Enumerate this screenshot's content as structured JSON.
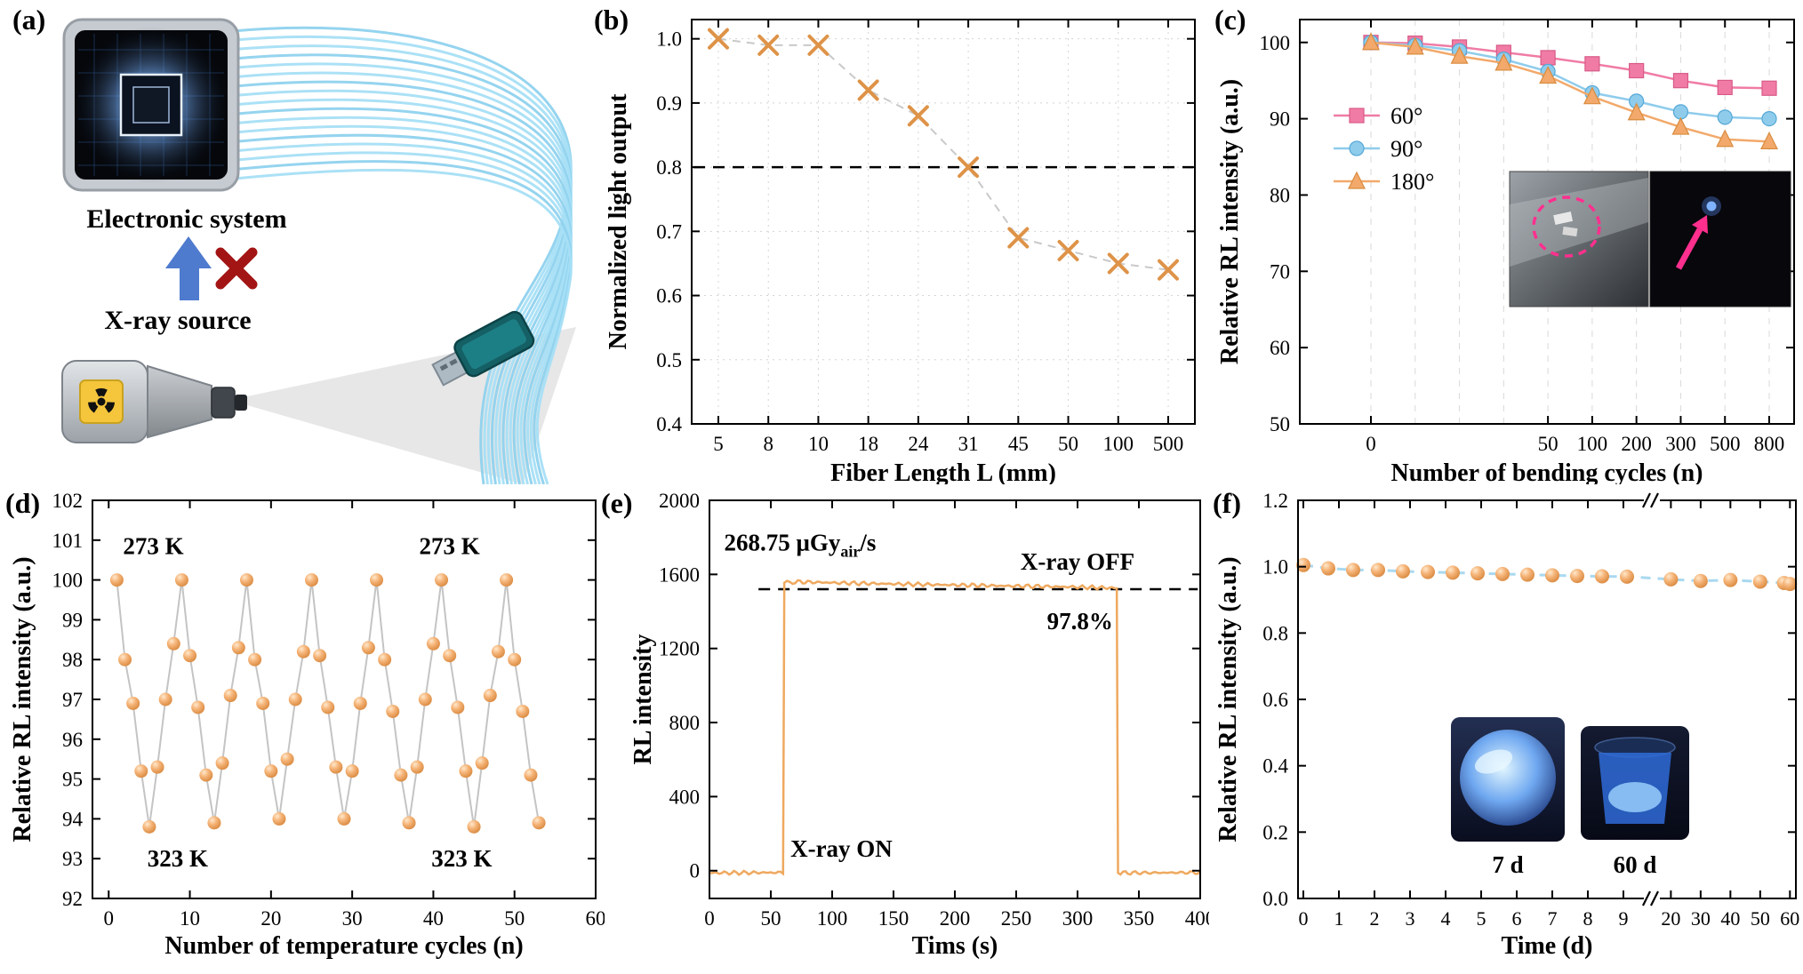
{
  "panels": {
    "a": {
      "label": "(a)",
      "electronic_system": "Electronic system",
      "xray_source": "X-ray source"
    },
    "b": {
      "label": "(b)"
    },
    "c": {
      "label": "(c)"
    },
    "d": {
      "label": "(d)"
    },
    "e": {
      "label": "(e)"
    },
    "f": {
      "label": "(f)"
    }
  },
  "chart_data": [
    {
      "id": "b",
      "type": "scatter",
      "xlabel": "Fiber Length L (mm)",
      "ylabel": "Normalized light output",
      "categories": [
        "5",
        "8",
        "10",
        "18",
        "24",
        "31",
        "45",
        "50",
        "100",
        "500"
      ],
      "values": [
        1.0,
        0.99,
        0.99,
        0.92,
        0.88,
        0.8,
        0.69,
        0.67,
        0.65,
        0.64
      ],
      "ylim": [
        0.4,
        1.03
      ],
      "yticks": [
        0.4,
        0.5,
        0.6,
        0.7,
        0.8,
        0.9,
        1.0
      ],
      "ref_line_y": 0.8,
      "grid": true,
      "marker": "x",
      "marker_color": "#DE9348",
      "line_color": "#c9c9c9"
    },
    {
      "id": "c",
      "type": "line",
      "xlabel": "Number of bending cycles (n)",
      "ylabel": "Relative RL intensity (a.u.)",
      "x_ticks": [
        [
          0,
          "0"
        ],
        [
          4,
          "50"
        ],
        [
          5,
          "100"
        ],
        [
          6,
          "200"
        ],
        [
          7,
          "300"
        ],
        [
          8,
          "500"
        ],
        [
          9,
          "800"
        ]
      ],
      "n_points": 10,
      "ylim": [
        50,
        103
      ],
      "yticks": [
        50,
        60,
        70,
        80,
        90,
        100
      ],
      "series": [
        {
          "name": "60°",
          "marker": "square",
          "color": "#F07CA5",
          "edge": "#D85A88",
          "values": [
            100,
            99.9,
            99.4,
            98.7,
            98.0,
            97.2,
            96.3,
            95.0,
            94.1,
            94.0
          ]
        },
        {
          "name": "90°",
          "marker": "circle",
          "color": "#8FCCEC",
          "edge": "#55A8D6",
          "values": [
            100,
            99.6,
            98.9,
            97.8,
            96.2,
            93.4,
            92.3,
            90.9,
            90.2,
            90.0
          ]
        },
        {
          "name": "180°",
          "marker": "triangle",
          "color": "#F2A96B",
          "edge": "#D98C3F",
          "values": [
            100,
            99.4,
            98.2,
            97.3,
            95.6,
            92.9,
            90.8,
            88.9,
            87.3,
            87.0
          ]
        }
      ]
    },
    {
      "id": "d",
      "type": "line",
      "xlabel": "Number of temperature cycles (n)",
      "ylabel": "Relative RL intensity (a.u.)",
      "xlim": [
        -2,
        60
      ],
      "xticks": [
        0,
        10,
        20,
        30,
        40,
        50,
        60
      ],
      "ylim": [
        92,
        102
      ],
      "yticks": [
        92,
        93,
        94,
        95,
        96,
        97,
        98,
        99,
        100,
        101,
        102
      ],
      "high_temp": "273 K",
      "low_temp": "323 K",
      "annotations": [
        {
          "text": "273 K",
          "x": 5.5,
          "y": 100.85
        },
        {
          "text": "273 K",
          "x": 42.0,
          "y": 100.85
        },
        {
          "text": "323 K",
          "x": 8.5,
          "y": 93.0
        },
        {
          "text": "323 K",
          "x": 43.5,
          "y": 93.0
        }
      ],
      "line_color": "#c4c4c4",
      "points": [
        [
          1,
          100
        ],
        [
          2,
          98
        ],
        [
          3,
          96.9
        ],
        [
          4,
          95.2
        ],
        [
          5,
          93.8
        ],
        [
          6,
          95.3
        ],
        [
          7,
          97
        ],
        [
          8,
          98.4
        ],
        [
          9,
          100
        ],
        [
          10,
          98.1
        ],
        [
          11,
          96.8
        ],
        [
          12,
          95.1
        ],
        [
          13,
          93.9
        ],
        [
          14,
          95.4
        ],
        [
          15,
          97.1
        ],
        [
          16,
          98.3
        ],
        [
          17,
          100
        ],
        [
          18,
          98
        ],
        [
          19,
          96.9
        ],
        [
          20,
          95.2
        ],
        [
          21,
          94
        ],
        [
          22,
          95.5
        ],
        [
          23,
          97
        ],
        [
          24,
          98.2
        ],
        [
          25,
          100
        ],
        [
          26,
          98.1
        ],
        [
          27,
          96.8
        ],
        [
          28,
          95.3
        ],
        [
          29,
          94
        ],
        [
          30,
          95.2
        ],
        [
          31,
          96.9
        ],
        [
          32,
          98.3
        ],
        [
          33,
          100
        ],
        [
          34,
          98
        ],
        [
          35,
          96.7
        ],
        [
          36,
          95.1
        ],
        [
          37,
          93.9
        ],
        [
          38,
          95.3
        ],
        [
          39,
          97
        ],
        [
          40,
          98.4
        ],
        [
          41,
          100
        ],
        [
          42,
          98.1
        ],
        [
          43,
          96.8
        ],
        [
          44,
          95.2
        ],
        [
          45,
          93.8
        ],
        [
          46,
          95.4
        ],
        [
          47,
          97.1
        ],
        [
          48,
          98.2
        ],
        [
          49,
          100
        ],
        [
          50,
          98
        ],
        [
          51,
          96.7
        ],
        [
          52,
          95.1
        ],
        [
          53,
          93.9
        ]
      ]
    },
    {
      "id": "e",
      "type": "line",
      "xlabel": "Tims (s)",
      "ylabel": "RL intensity",
      "xlim": [
        0,
        400
      ],
      "xticks": [
        0,
        50,
        100,
        150,
        200,
        250,
        300,
        350,
        400
      ],
      "ylim": [
        -150,
        2000
      ],
      "yticks": [
        0,
        400,
        800,
        1200,
        1600,
        2000
      ],
      "ref_line_y": 1520,
      "color": "#EFA95F",
      "trace": [
        [
          0,
          -12
        ],
        [
          60,
          -10
        ],
        [
          61,
          1555
        ],
        [
          70,
          1560
        ],
        [
          120,
          1552
        ],
        [
          180,
          1545
        ],
        [
          240,
          1538
        ],
        [
          300,
          1532
        ],
        [
          332,
          1526
        ],
        [
          333,
          -12
        ],
        [
          400,
          -10
        ]
      ],
      "dose_label": {
        "pre": "268.75 μGy",
        "sub": "air",
        "post": "/s",
        "x": 12,
        "y": 1730
      },
      "on_label": {
        "text": "X-ray ON",
        "x": 66,
        "y": 75
      },
      "off_label": {
        "text": "X-ray OFF",
        "x": 300,
        "y": 1625
      },
      "retention_label": {
        "text": "97.8%",
        "x": 302,
        "y": 1305
      }
    },
    {
      "id": "f",
      "type": "scatter",
      "xlabel": "Time (d)",
      "ylabel": "Relative RL intensity (a.u.)",
      "ylim": [
        0,
        1.2
      ],
      "yticks": [
        0.0,
        0.2,
        0.4,
        0.6,
        0.8,
        1.0,
        1.2
      ],
      "axis_break": true,
      "seg1": {
        "range": [
          0,
          9.6
        ],
        "ticks": [
          0,
          1,
          2,
          3,
          4,
          5,
          6,
          7,
          8,
          9
        ]
      },
      "seg2": {
        "range": [
          16,
          62
        ],
        "ticks": [
          20,
          30,
          40,
          50,
          60
        ]
      },
      "line_color": "#A9D9F0",
      "points": [
        [
          0,
          1.005
        ],
        [
          0.7,
          0.995
        ],
        [
          1.4,
          0.99
        ],
        [
          2.1,
          0.99
        ],
        [
          2.8,
          0.986
        ],
        [
          3.5,
          0.984
        ],
        [
          4.2,
          0.982
        ],
        [
          4.9,
          0.98
        ],
        [
          5.6,
          0.978
        ],
        [
          6.3,
          0.976
        ],
        [
          7,
          0.974
        ],
        [
          7.7,
          0.972
        ],
        [
          8.4,
          0.971
        ],
        [
          9.1,
          0.97
        ],
        [
          20,
          0.962
        ],
        [
          30,
          0.957
        ],
        [
          40,
          0.96
        ],
        [
          50,
          0.955
        ],
        [
          58,
          0.951
        ],
        [
          60,
          0.948
        ]
      ],
      "inset_labels": [
        "7 d",
        "60 d"
      ]
    }
  ]
}
